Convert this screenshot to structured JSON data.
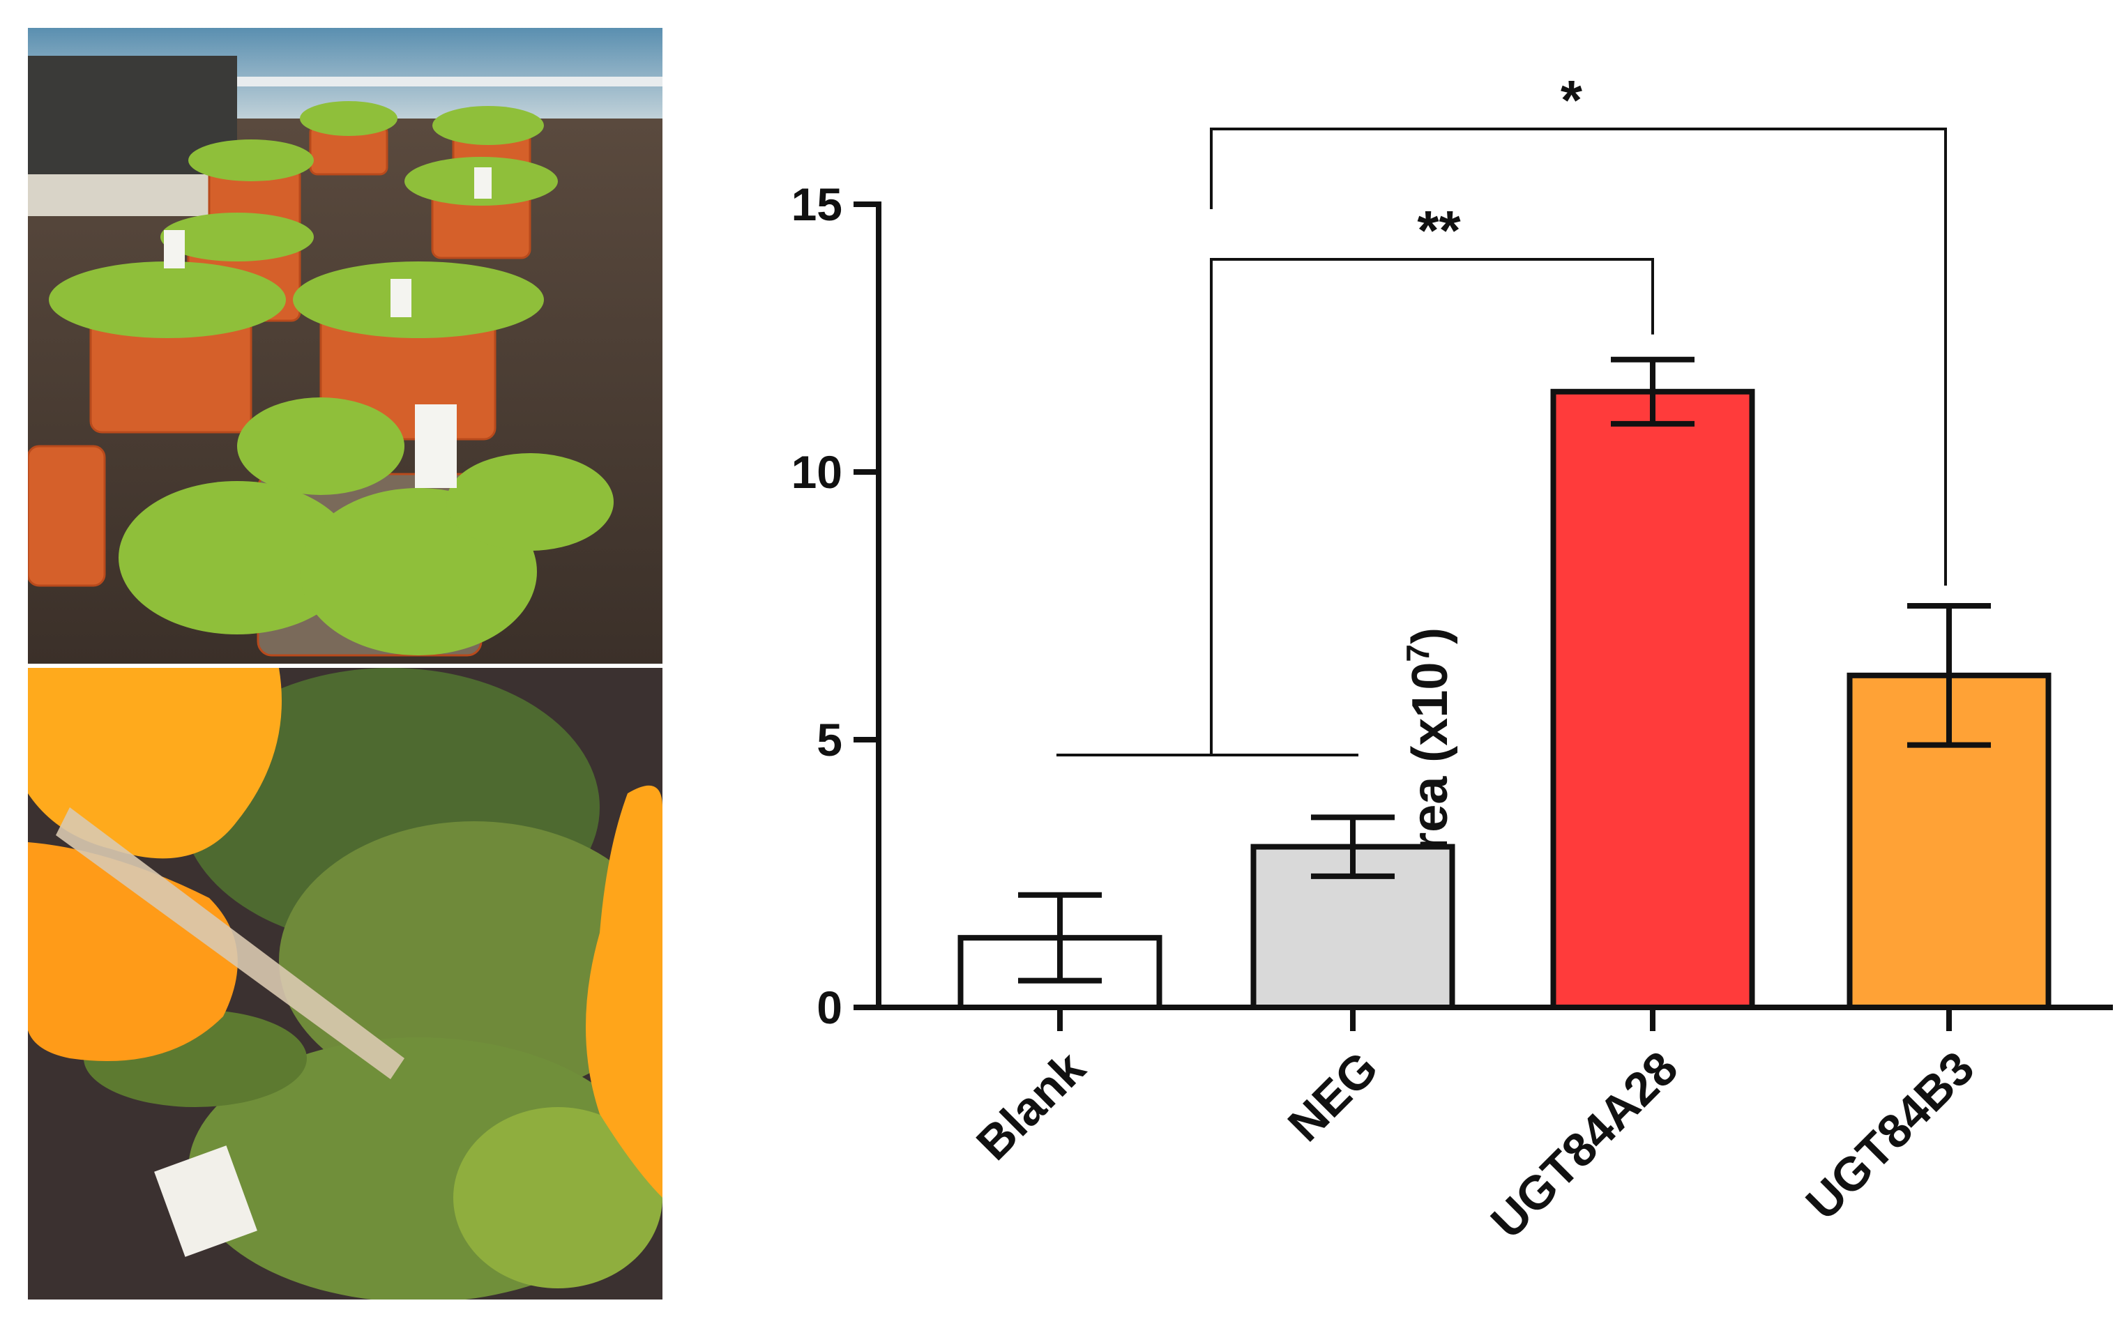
{
  "chart_data": {
    "type": "bar",
    "categories": [
      "Blank",
      "NEG",
      "UGT84A28",
      "UGT84B3"
    ],
    "values": [
      1.3,
      3.0,
      11.5,
      6.2
    ],
    "error": [
      0.8,
      0.55,
      0.6,
      1.3
    ],
    "colors": [
      "#ffffff",
      "#d9d9d9",
      "#ff3b3b",
      "#ffa236"
    ],
    "ylabel": "Peak area (x10",
    "ylabel_exp": "7",
    "ylabel_close": ")",
    "ylim": [
      0,
      15
    ],
    "yticks": [
      0,
      5,
      10,
      15
    ],
    "significance": [
      {
        "label": "**",
        "from": "Blank+NEG",
        "to": "UGT84A28"
      },
      {
        "label": "*",
        "from": "Blank+NEG",
        "to": "UGT84B3"
      }
    ],
    "grid": false,
    "legend": "none"
  },
  "photos": {
    "top": "greenhouse-plants-photo",
    "bottom": "leaf-infiltration-photo"
  }
}
